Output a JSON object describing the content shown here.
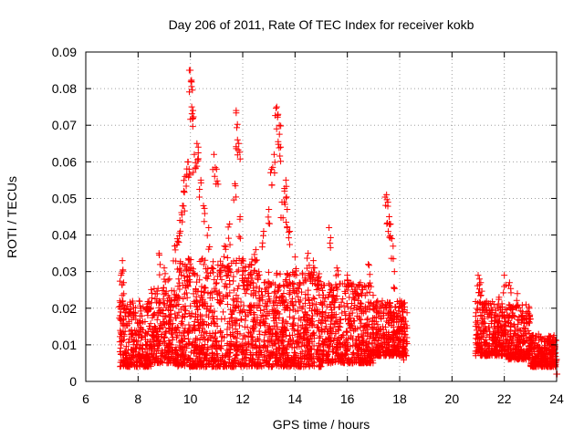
{
  "chart_data": {
    "type": "scatter",
    "title": "Day 206 of 2011, Rate Of TEC Index for receiver kokb",
    "xlabel": "GPS time / hours",
    "ylabel": "ROTI / TECUs",
    "xlim": [
      6,
      24
    ],
    "ylim": [
      0,
      0.09
    ],
    "grid": true,
    "marker": "+",
    "color": "#ff0000",
    "x_ticks": [
      "6",
      "8",
      "10",
      "12",
      "14",
      "16",
      "18",
      "20",
      "22",
      "24"
    ],
    "y_ticks": [
      "0",
      "0.01",
      "0.02",
      "0.03",
      "0.04",
      "0.05",
      "0.06",
      "0.07",
      "0.08",
      "0.09"
    ],
    "points": [
      [
        7.3,
        0.022
      ],
      [
        7.35,
        0.029
      ],
      [
        7.4,
        0.033
      ],
      [
        7.45,
        0.027
      ],
      [
        7.5,
        0.02
      ],
      [
        8.8,
        0.035
      ],
      [
        9.0,
        0.031
      ],
      [
        9.2,
        0.028
      ],
      [
        9.4,
        0.037
      ],
      [
        9.5,
        0.039
      ],
      [
        9.6,
        0.044
      ],
      [
        9.7,
        0.048
      ],
      [
        9.75,
        0.052
      ],
      [
        9.8,
        0.056
      ],
      [
        9.9,
        0.06
      ],
      [
        9.95,
        0.058
      ],
      [
        10.0,
        0.085
      ],
      [
        10.02,
        0.082
      ],
      [
        10.05,
        0.075
      ],
      [
        10.1,
        0.074
      ],
      [
        10.15,
        0.062
      ],
      [
        10.25,
        0.065
      ],
      [
        10.3,
        0.064
      ],
      [
        10.4,
        0.055
      ],
      [
        10.5,
        0.048
      ],
      [
        10.7,
        0.042
      ],
      [
        10.9,
        0.062
      ],
      [
        11.0,
        0.058
      ],
      [
        11.3,
        0.037
      ],
      [
        11.5,
        0.043
      ],
      [
        11.7,
        0.054
      ],
      [
        11.75,
        0.074
      ],
      [
        11.8,
        0.066
      ],
      [
        11.85,
        0.065
      ],
      [
        11.9,
        0.045
      ],
      [
        12.0,
        0.031
      ],
      [
        12.5,
        0.036
      ],
      [
        12.8,
        0.041
      ],
      [
        13.0,
        0.047
      ],
      [
        13.1,
        0.058
      ],
      [
        13.2,
        0.062
      ],
      [
        13.3,
        0.075
      ],
      [
        13.35,
        0.073
      ],
      [
        13.4,
        0.07
      ],
      [
        13.45,
        0.064
      ],
      [
        13.5,
        0.049
      ],
      [
        13.6,
        0.052
      ],
      [
        13.65,
        0.055
      ],
      [
        13.7,
        0.047
      ],
      [
        13.8,
        0.041
      ],
      [
        14.0,
        0.034
      ],
      [
        14.5,
        0.035
      ],
      [
        14.7,
        0.033
      ],
      [
        15.3,
        0.042
      ],
      [
        15.6,
        0.031
      ],
      [
        16.0,
        0.029
      ],
      [
        16.5,
        0.027
      ],
      [
        16.8,
        0.032
      ],
      [
        17.5,
        0.051
      ],
      [
        17.55,
        0.049
      ],
      [
        17.6,
        0.045
      ],
      [
        17.65,
        0.043
      ],
      [
        17.7,
        0.039
      ],
      [
        17.8,
        0.03
      ],
      [
        18.0,
        0.022
      ],
      [
        18.1,
        0.02
      ],
      [
        18.2,
        0.008
      ],
      [
        21.0,
        0.029
      ],
      [
        21.05,
        0.028
      ],
      [
        21.1,
        0.027
      ],
      [
        21.2,
        0.021
      ],
      [
        21.5,
        0.02
      ],
      [
        21.8,
        0.023
      ],
      [
        22.0,
        0.029
      ],
      [
        22.2,
        0.027
      ],
      [
        22.5,
        0.024
      ],
      [
        22.7,
        0.019
      ],
      [
        23.0,
        0.017
      ],
      [
        23.4,
        0.012
      ],
      [
        23.8,
        0.01
      ],
      [
        24.0,
        0.006
      ]
    ],
    "dense_band": {
      "description": "dense cluster of points",
      "segments": [
        {
          "x_start": 7.3,
          "x_end": 8.5,
          "y_low": 0.004,
          "y_high": 0.022
        },
        {
          "x_start": 8.5,
          "x_end": 9.5,
          "y_low": 0.005,
          "y_high": 0.026
        },
        {
          "x_start": 9.5,
          "x_end": 12.5,
          "y_low": 0.004,
          "y_high": 0.034
        },
        {
          "x_start": 12.5,
          "x_end": 15.0,
          "y_low": 0.004,
          "y_high": 0.03
        },
        {
          "x_start": 15.0,
          "x_end": 17.0,
          "y_low": 0.005,
          "y_high": 0.027
        },
        {
          "x_start": 17.0,
          "x_end": 18.3,
          "y_low": 0.007,
          "y_high": 0.022
        },
        {
          "x_start": 20.9,
          "x_end": 22.0,
          "y_low": 0.007,
          "y_high": 0.022
        },
        {
          "x_start": 22.0,
          "x_end": 23.0,
          "y_low": 0.006,
          "y_high": 0.021
        },
        {
          "x_start": 23.0,
          "x_end": 24.0,
          "y_low": 0.004,
          "y_high": 0.013
        }
      ]
    }
  }
}
